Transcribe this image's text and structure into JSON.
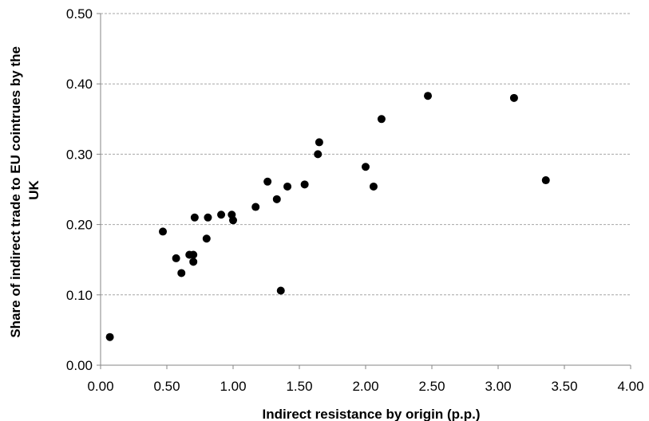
{
  "chart_data": {
    "type": "scatter",
    "title": "",
    "xlabel": "Indirect resistance by origin (p.p.)",
    "ylabel_lines": [
      "Share of indirect trade to EU cointrues by the",
      "UK"
    ],
    "xlim": [
      0,
      4
    ],
    "ylim": [
      0,
      0.5
    ],
    "x_ticks": [
      "0.00",
      "0.50",
      "1.00",
      "1.50",
      "2.00",
      "2.50",
      "3.00",
      "3.50",
      "4.00"
    ],
    "y_ticks": [
      "0.00",
      "0.10",
      "0.20",
      "0.30",
      "0.40",
      "0.50"
    ],
    "grid": "horizontal dashed",
    "marker_color": "#000000",
    "grid_color": "#a6a6a6",
    "series": [
      {
        "points": [
          {
            "x": 0.07,
            "y": 0.04
          },
          {
            "x": 0.47,
            "y": 0.19
          },
          {
            "x": 0.57,
            "y": 0.152
          },
          {
            "x": 0.61,
            "y": 0.131
          },
          {
            "x": 0.67,
            "y": 0.157
          },
          {
            "x": 0.7,
            "y": 0.157
          },
          {
            "x": 0.7,
            "y": 0.147
          },
          {
            "x": 0.71,
            "y": 0.21
          },
          {
            "x": 0.8,
            "y": 0.18
          },
          {
            "x": 0.81,
            "y": 0.21
          },
          {
            "x": 0.91,
            "y": 0.214
          },
          {
            "x": 0.99,
            "y": 0.214
          },
          {
            "x": 1.0,
            "y": 0.206
          },
          {
            "x": 1.17,
            "y": 0.225
          },
          {
            "x": 1.26,
            "y": 0.261
          },
          {
            "x": 1.33,
            "y": 0.236
          },
          {
            "x": 1.36,
            "y": 0.106
          },
          {
            "x": 1.41,
            "y": 0.254
          },
          {
            "x": 1.54,
            "y": 0.257
          },
          {
            "x": 1.64,
            "y": 0.3
          },
          {
            "x": 1.65,
            "y": 0.317
          },
          {
            "x": 2.0,
            "y": 0.282
          },
          {
            "x": 2.06,
            "y": 0.254
          },
          {
            "x": 2.12,
            "y": 0.35
          },
          {
            "x": 2.47,
            "y": 0.383
          },
          {
            "x": 3.12,
            "y": 0.38
          },
          {
            "x": 3.36,
            "y": 0.263
          }
        ]
      }
    ]
  }
}
